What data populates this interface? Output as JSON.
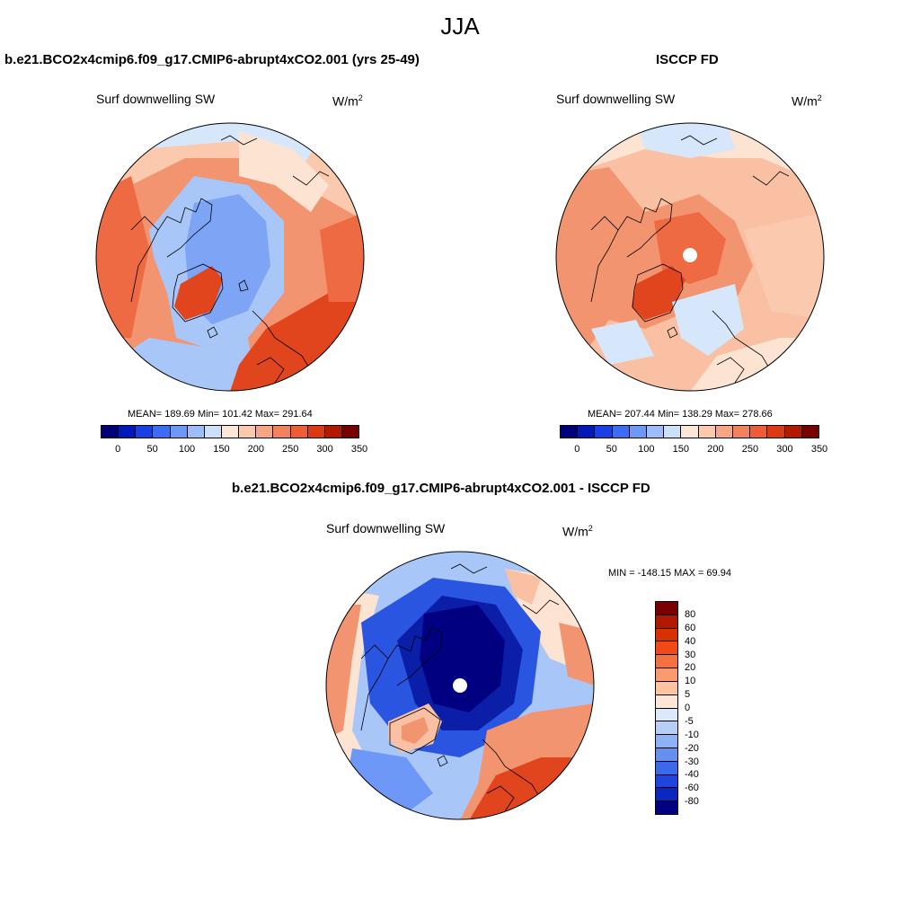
{
  "title": "JJA",
  "panels": [
    {
      "id": "model",
      "title": "b.e21.BCO2x4cmip6.f09_g17.CMIP6-abrupt4xCO2.001 (yrs 25-49)",
      "variable": "Surf downwelling SW",
      "units_base": "W/m",
      "units_exp": "2",
      "stats": "MEAN= 189.69  Min= 101.42  Max= 291.64"
    },
    {
      "id": "obs",
      "title": "ISCCP FD",
      "variable": "Surf downwelling SW",
      "units_base": "W/m",
      "units_exp": "2",
      "stats": "MEAN= 207.44  Min= 138.29  Max= 278.66"
    },
    {
      "id": "diff",
      "title": "b.e21.BCO2x4cmip6.f09_g17.CMIP6-abrupt4xCO2.001 - ISCCP FD",
      "variable": "Surf downwelling SW",
      "units_base": "W/m",
      "units_exp": "2",
      "stats": "MIN = -148.15 MAX =  69.94"
    }
  ],
  "colorbars": {
    "absolute": {
      "colors": [
        "#00007a",
        "#0019b8",
        "#1a3fe6",
        "#3d6df5",
        "#6d98f7",
        "#9dbdf9",
        "#cde0fb",
        "#fde6d8",
        "#fbc9ae",
        "#f8a584",
        "#f4815e",
        "#ef5d36",
        "#dd3a14",
        "#b21a00",
        "#7a0000"
      ],
      "labels": [
        "0",
        "50",
        "100",
        "150",
        "200",
        "250",
        "300",
        "350"
      ]
    },
    "difference": {
      "colors": [
        "#7a0000",
        "#b01800",
        "#d83000",
        "#f04a18",
        "#f57040",
        "#f99a70",
        "#fcc4a0",
        "#fde6d8",
        "#dce9fb",
        "#b7cff8",
        "#8fb2f5",
        "#6590f0",
        "#3d68ea",
        "#1e46dc",
        "#0a28c0",
        "#000080"
      ],
      "labels": [
        "80",
        "60",
        "40",
        "30",
        "20",
        "10",
        "5",
        "0",
        "-5",
        "-10",
        "-20",
        "-30",
        "-40",
        "-60",
        "-80"
      ]
    }
  },
  "map_colors": {
    "deep_blue": "#0a1ea8",
    "blue": "#2a55e0",
    "mid_blue": "#6d98f7",
    "light_blue": "#a9c6f8",
    "pale_blue": "#d6e6fb",
    "pale_orange": "#fde3d2",
    "light_orange": "#f9c0a4",
    "orange": "#f39470",
    "red_orange": "#ee6a42",
    "red": "#e0451e",
    "dark_red": "#c93210"
  }
}
